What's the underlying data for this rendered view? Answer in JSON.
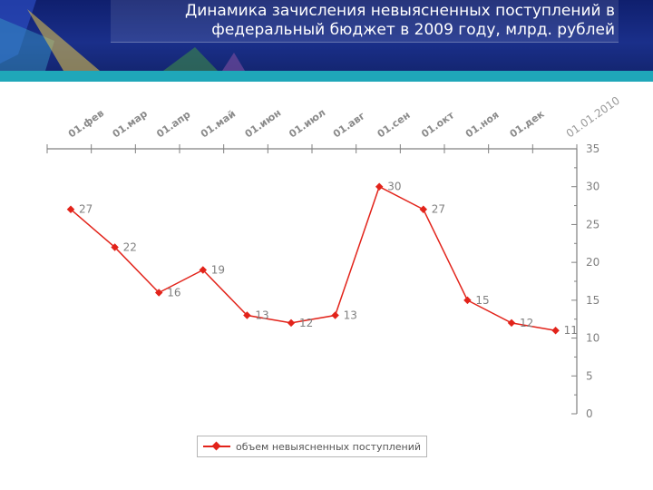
{
  "header": {
    "title_line1": "Динамика зачисления невыясненных поступлений в",
    "title_line2": "федеральный бюджет в 2009 году, млрд. рублей"
  },
  "colors": {
    "series": "#e2231a",
    "axis": "#808080",
    "label": "#808080",
    "header_bg": "#1a2f8a",
    "header_strip": "#1fa7b9"
  },
  "chart_data": {
    "type": "line",
    "categories": [
      "01.фев",
      "01.мар",
      "01.апр",
      "01.май",
      "01.июн",
      "01.июл",
      "01.авг",
      "01.сен",
      "01.окт",
      "01.ноя",
      "01.дек",
      "01.01.2010"
    ],
    "series": [
      {
        "name": "объем невыясненных поступлений",
        "values": [
          27,
          22,
          16,
          19,
          13,
          12,
          13,
          30,
          27,
          15,
          12,
          11
        ]
      }
    ],
    "ylim": [
      0,
      35
    ],
    "yticks": [
      0,
      5,
      10,
      15,
      20,
      25,
      30,
      35
    ],
    "x_axis_position": "top",
    "y_axis_position": "right",
    "data_labels": true,
    "grid": false,
    "legend_position": "bottom"
  }
}
